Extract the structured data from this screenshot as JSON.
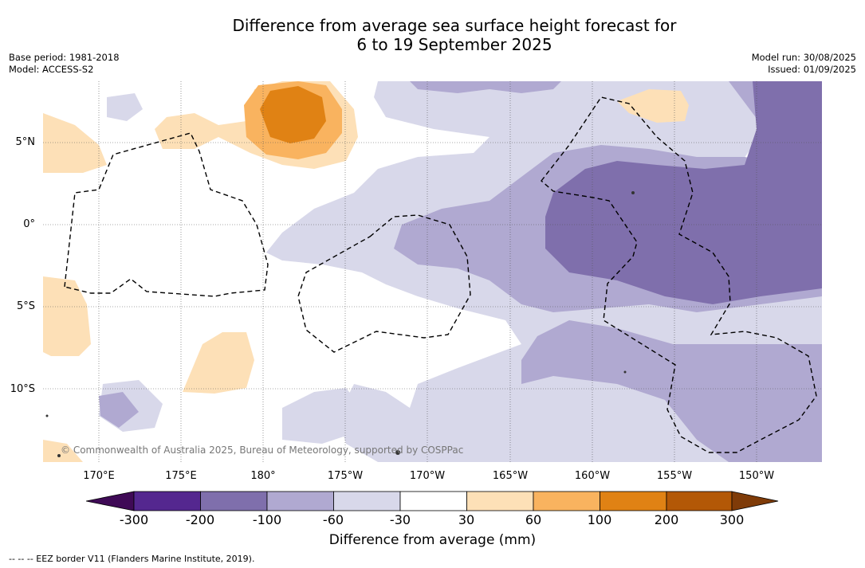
{
  "title_line1": "Difference from average sea surface height forecast for",
  "title_line2": "6 to 19 September 2025",
  "base_period": "Base period: 1981-2018",
  "model": "Model: ACCESS-S2",
  "model_run": "Model run: 30/08/2025",
  "issued": "Issued: 01/09/2025",
  "copyright": "© Commonwealth of Australia 2025, Bureau of Meteorology, supported by COSPPac",
  "longitude_labels": [
    "170°E",
    "175°E",
    "180°",
    "175°W",
    "170°W",
    "165°W",
    "160°W",
    "155°W",
    "150°W"
  ],
  "latitude_labels": [
    "5°N",
    "0°",
    "5°S",
    "10°S"
  ],
  "colorbar": {
    "title": "Difference from average (mm)",
    "tick_labels": [
      "-300",
      "-200",
      "-100",
      "-60",
      "-30",
      "30",
      "60",
      "100",
      "200",
      "300"
    ],
    "colors": [
      "#3f0a56",
      "#54278f",
      "#7f6fac",
      "#b0a9d1",
      "#d8d8ea",
      "#ffffff",
      "#fde0b7",
      "#f9b35f",
      "#e08214",
      "#b35806",
      "#7f3b08"
    ]
  },
  "eez_legend": "--  --  -- EEZ border V11 (Flanders Marine Institute, 2019)."
}
